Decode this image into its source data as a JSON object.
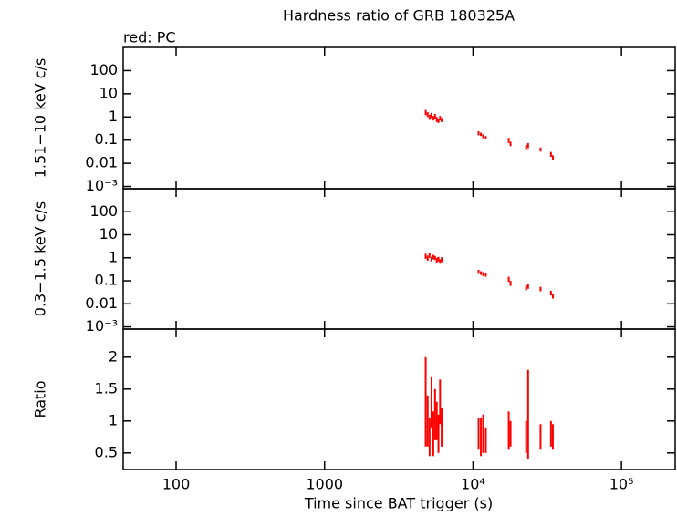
{
  "chart_data": [
    {
      "type": "scatter",
      "title": "Hardness ratio of GRB 180325A",
      "subtitle": "red: PC",
      "ylabel": "1.51−10 keV c/s",
      "xlog": true,
      "ylog": true,
      "xlim": [
        44,
        230000
      ],
      "ylim": [
        0.0008,
        1000
      ],
      "xticks": [
        100,
        1000,
        10000,
        100000
      ],
      "yticks": [
        {
          "value": 0.001,
          "label": "10⁻³"
        },
        0.01,
        0.1,
        1,
        10,
        100
      ],
      "series": [
        {
          "color": "#ff0000",
          "x": [
            4800,
            4950,
            5100,
            5250,
            5400,
            5550,
            5700,
            5850,
            6000,
            6150,
            10900,
            11300,
            11700,
            12200,
            17400,
            17900,
            22800,
            23500,
            28500,
            33500,
            34500
          ],
          "values": [
            1.6,
            1.3,
            1.0,
            1.2,
            0.9,
            1.1,
            0.8,
            0.7,
            0.9,
            0.75,
            0.2,
            0.18,
            0.15,
            0.13,
            0.1,
            0.07,
            0.05,
            0.06,
            0.04,
            0.025,
            0.018
          ],
          "yerr": [
            0.4,
            0.3,
            0.25,
            0.3,
            0.2,
            0.25,
            0.2,
            0.15,
            0.2,
            0.15,
            0.04,
            0.03,
            0.03,
            0.02,
            0.025,
            0.015,
            0.012,
            0.015,
            0.008,
            0.006,
            0.004
          ]
        }
      ]
    },
    {
      "type": "scatter",
      "ylabel": "0.3−1.5 keV c/s",
      "xlog": true,
      "ylog": true,
      "xlim": [
        44,
        230000
      ],
      "ylim": [
        0.0008,
        1000
      ],
      "xticks": [
        100,
        1000,
        10000,
        100000
      ],
      "yticks": [
        {
          "value": 0.001,
          "label": "10⁻³"
        },
        0.01,
        0.1,
        1,
        10,
        100
      ],
      "series": [
        {
          "color": "#ff0000",
          "x": [
            4800,
            4950,
            5100,
            5250,
            5400,
            5550,
            5700,
            5850,
            6000,
            6150,
            10900,
            11300,
            11700,
            12200,
            17400,
            17900,
            22800,
            23500,
            28500,
            33500,
            34500
          ],
          "values": [
            1.2,
            1.0,
            1.3,
            0.9,
            1.1,
            1.0,
            0.8,
            0.9,
            0.7,
            0.85,
            0.25,
            0.22,
            0.2,
            0.18,
            0.12,
            0.08,
            0.05,
            0.06,
            0.045,
            0.03,
            0.022
          ],
          "yerr": [
            0.3,
            0.25,
            0.3,
            0.2,
            0.25,
            0.2,
            0.2,
            0.2,
            0.15,
            0.2,
            0.05,
            0.04,
            0.04,
            0.03,
            0.03,
            0.02,
            0.012,
            0.015,
            0.01,
            0.007,
            0.005
          ]
        }
      ]
    },
    {
      "type": "scatter",
      "ylabel": "Ratio",
      "xlabel": "Time since BAT trigger (s)",
      "xlog": true,
      "ylog": false,
      "xlim": [
        44,
        230000
      ],
      "ylim": [
        0.24,
        2.44
      ],
      "xticks": [
        100,
        1000,
        {
          "value": 10000,
          "label": "10⁴"
        },
        {
          "value": 100000,
          "label": "10⁵"
        }
      ],
      "yticks": [
        0.5,
        1,
        1.5,
        2
      ],
      "series": [
        {
          "color": "#ff0000",
          "x": [
            4800,
            4950,
            5100,
            5250,
            5400,
            5550,
            5700,
            5850,
            6000,
            6150,
            10900,
            11300,
            11700,
            12200,
            17400,
            17900,
            22800,
            23500,
            28500,
            33500,
            34500
          ],
          "values": [
            1.3,
            1.0,
            0.75,
            1.3,
            0.8,
            1.1,
            1.0,
            0.8,
            1.3,
            0.9,
            0.8,
            0.75,
            0.8,
            0.7,
            0.85,
            0.8,
            0.75,
            1.1,
            0.75,
            0.8,
            0.75
          ],
          "yerr": [
            0.7,
            0.4,
            0.3,
            0.4,
            0.35,
            0.4,
            0.3,
            0.3,
            0.35,
            0.3,
            0.25,
            0.3,
            0.3,
            0.2,
            0.3,
            0.2,
            0.25,
            0.7,
            0.2,
            0.2,
            0.2
          ]
        }
      ]
    }
  ]
}
